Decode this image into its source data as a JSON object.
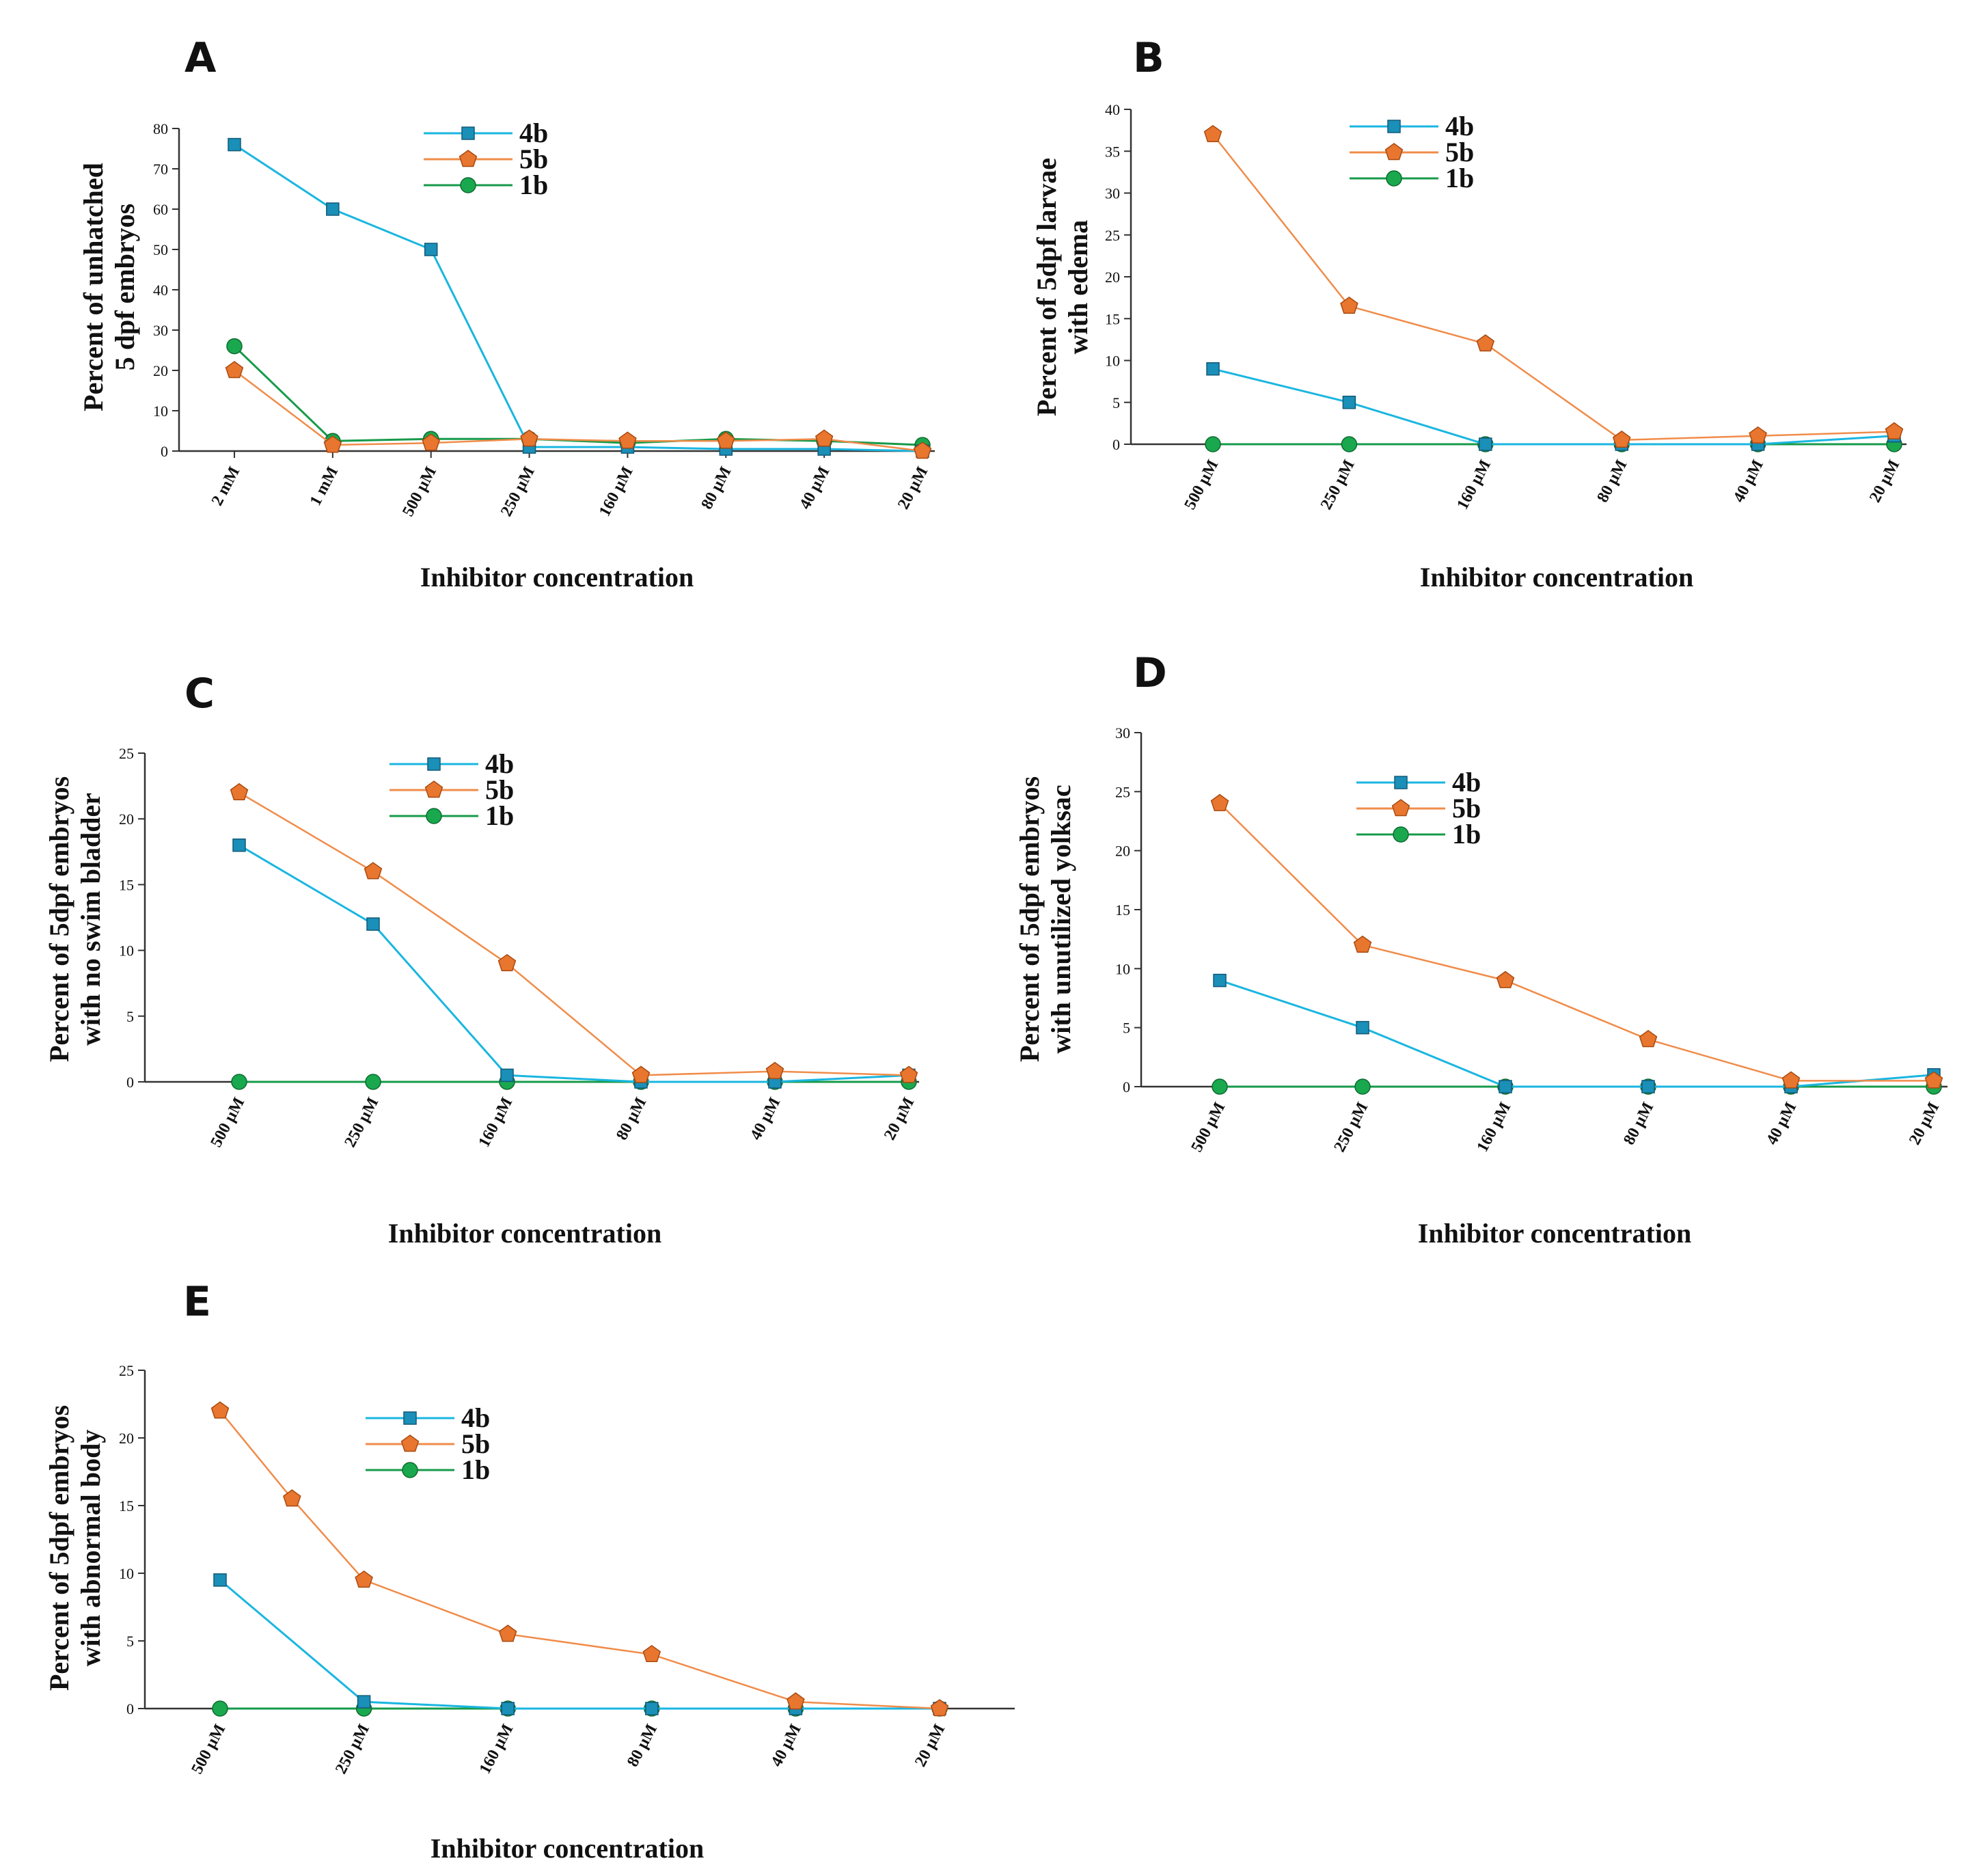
{
  "colors": {
    "4b": "#1ab6e0",
    "5b": "#f08c4a",
    "1b": "#179a4a",
    "4b_marker": "#1a8fb8",
    "5b_marker": "#e8762f",
    "1b_marker": "#1aa84e"
  },
  "chart_data": [
    {
      "type": "line",
      "panel": "A",
      "ylabel": [
        "Percent of unhatched",
        "5 dpf  embryos"
      ],
      "xlabel": "Inhibitor concentration",
      "categories": [
        "2 mM",
        "1 mM",
        "500 µM",
        "250 µM",
        "160 µM",
        "80 µM",
        "40 µM",
        "20 µM"
      ],
      "ylim": [
        0,
        80
      ],
      "yticks": [
        "0",
        "10",
        "20",
        "30",
        "40",
        "50",
        "60",
        "70",
        "80"
      ],
      "series": [
        {
          "name": "4b",
          "values": [
            76,
            60,
            50,
            1,
            1,
            0.5,
            0.5,
            0
          ]
        },
        {
          "name": "5b",
          "values": [
            20,
            1.5,
            2,
            3,
            2.5,
            2.5,
            3,
            0
          ]
        },
        {
          "name": "1b",
          "values": [
            26,
            2.5,
            3,
            3,
            2,
            3,
            2.5,
            1.5
          ]
        }
      ]
    },
    {
      "type": "line",
      "panel": "B",
      "ylabel": [
        "Percent of  5dpf larvae",
        "with edema"
      ],
      "xlabel": "Inhibitor concentration",
      "categories": [
        "500 µM",
        "250 µM",
        "160 µM",
        "80 µM",
        "40 µM",
        "20 µM"
      ],
      "ylim": [
        0,
        40
      ],
      "yticks": [
        "0",
        "5",
        "10",
        "15",
        "20",
        "25",
        "30",
        "35",
        "40"
      ],
      "series": [
        {
          "name": "4b",
          "values": [
            9,
            5,
            0,
            0,
            0,
            1
          ]
        },
        {
          "name": "5b",
          "values": [
            37,
            16.5,
            12,
            0.5,
            1,
            1.5
          ]
        },
        {
          "name": "1b",
          "values": [
            0,
            0,
            0,
            0,
            0,
            0
          ]
        }
      ]
    },
    {
      "type": "line",
      "panel": "C",
      "ylabel": [
        "Percent of 5dpf embryos",
        "with no swim bladder"
      ],
      "xlabel": "Inhibitor concentration",
      "categories": [
        "500 µM",
        "250 µM",
        "160 µM",
        "80 µM",
        "40 µM",
        "20 µM"
      ],
      "ylim": [
        0,
        25
      ],
      "yticks": [
        "0",
        "5",
        "10",
        "15",
        "20",
        "25"
      ],
      "series": [
        {
          "name": "4b",
          "values": [
            18,
            12,
            0.5,
            0,
            0,
            0.5
          ]
        },
        {
          "name": "5b",
          "values": [
            22,
            16,
            9,
            0.5,
            0.8,
            0.5
          ]
        },
        {
          "name": "1b",
          "values": [
            0,
            0,
            0,
            0,
            0,
            0
          ]
        }
      ]
    },
    {
      "type": "line",
      "panel": "D",
      "ylabel": [
        "Percent of 5dpf embryos",
        "with unutilized yolksac"
      ],
      "xlabel": "Inhibitor concentration",
      "categories": [
        "500 µM",
        "250 µM",
        "160 µM",
        "80 µM",
        "40 µM",
        "20 µM"
      ],
      "ylim": [
        0,
        30
      ],
      "yticks": [
        "0",
        "5",
        "10",
        "15",
        "20",
        "25",
        "30"
      ],
      "series": [
        {
          "name": "4b",
          "values": [
            9,
            5,
            0,
            0,
            0,
            1
          ]
        },
        {
          "name": "5b",
          "values": [
            24,
            12,
            9,
            4,
            0.5,
            0.5
          ]
        },
        {
          "name": "1b",
          "values": [
            0,
            0,
            0,
            0,
            0,
            0
          ]
        }
      ]
    },
    {
      "type": "line",
      "panel": "E",
      "ylabel": [
        "Percent of  5dpf  embryos",
        "with  abnormal body"
      ],
      "xlabel": "Inhibitor concentration",
      "categories": [
        "500 µM",
        "250 µM",
        "160 µM",
        "80 µM",
        "40 µM",
        "20 µM"
      ],
      "ylim": [
        0,
        25
      ],
      "yticks": [
        "0",
        "5",
        "10",
        "15",
        "20",
        "25"
      ],
      "series": [
        {
          "name": "4b",
          "x": [
            0,
            1,
            2,
            3,
            4,
            5
          ],
          "values": [
            9.5,
            0.5,
            0,
            0,
            0,
            0
          ]
        },
        {
          "name": "5b",
          "x": [
            0,
            0.5,
            1,
            2,
            3,
            4,
            5
          ],
          "values": [
            22,
            15.5,
            9.5,
            5.5,
            4,
            0.5,
            0
          ]
        },
        {
          "name": "1b",
          "x": [
            0,
            1,
            2,
            3,
            4,
            5
          ],
          "values": [
            0,
            0,
            0,
            0,
            0,
            0
          ]
        }
      ]
    }
  ]
}
